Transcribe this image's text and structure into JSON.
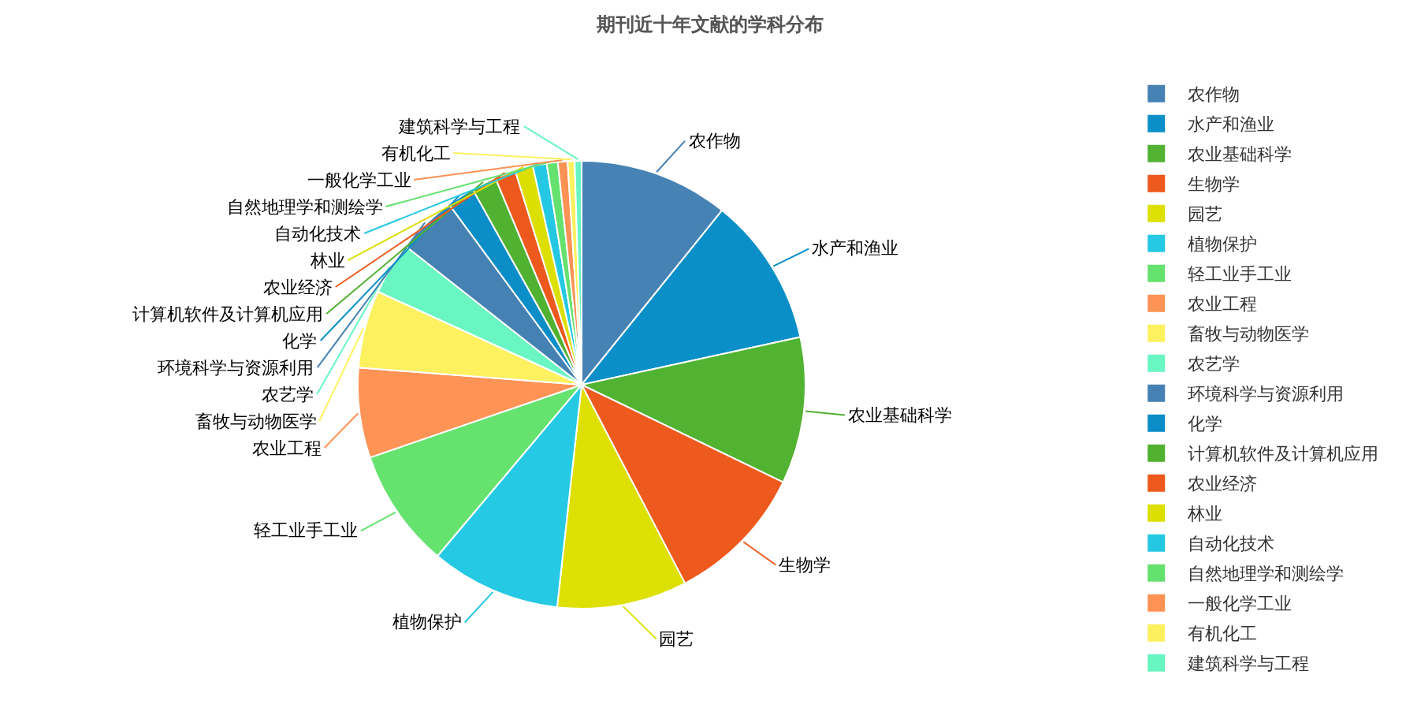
{
  "chart_data": {
    "type": "pie",
    "title": "期刊近十年文献的学科分布",
    "categories": [
      "农作物",
      "水产和渔业",
      "农业基础科学",
      "生物学",
      "园艺",
      "植物保护",
      "轻工业手工业",
      "农业工程",
      "畜牧与动物医学",
      "农艺学",
      "环境科学与资源利用",
      "化学",
      "计算机软件及计算机应用",
      "农业经济",
      "林业",
      "自动化技术",
      "自然地理学和测绘学",
      "一般化学工业",
      "有机化工",
      "建筑科学与工程"
    ],
    "values": [
      10.8,
      10.8,
      10.6,
      10.2,
      9.4,
      9.4,
      8.6,
      6.5,
      5.6,
      3.8,
      4.3,
      2.0,
      1.8,
      1.5,
      1.3,
      1.0,
      0.8,
      0.7,
      0.5,
      0.5
    ],
    "colors": [
      "#4682b4",
      "#0a8fc8",
      "#52b232",
      "#ee5a1e",
      "#dde000",
      "#26c9e4",
      "#66e26f",
      "#fd9355",
      "#fef160",
      "#6af6c2",
      "#4581b3",
      "#0b8ec7",
      "#51b131",
      "#ed591d",
      "#dcdf00",
      "#25c8e3",
      "#65e16e",
      "#fc9254",
      "#fdf05f",
      "#69f5c1"
    ],
    "legend": "right"
  }
}
